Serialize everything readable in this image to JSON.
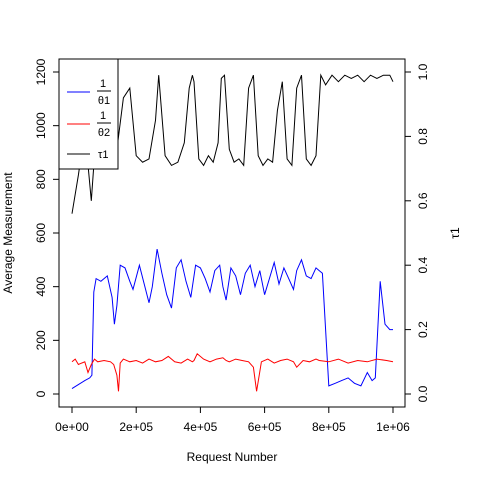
{
  "chart_data": {
    "type": "line",
    "xlabel": "Request Number",
    "ylabel_left": "Average Measurement",
    "ylabel_right": "τ1",
    "xlim": [
      0,
      1000000
    ],
    "ylim_left": [
      0,
      1200
    ],
    "ylim_right": [
      0,
      1
    ],
    "x_ticks": [
      0,
      200000,
      400000,
      600000,
      800000,
      1000000
    ],
    "x_tick_labels": [
      "0e+00",
      "2e+05",
      "4e+05",
      "6e+05",
      "8e+05",
      "1e+06"
    ],
    "y_ticks_left": [
      0,
      200,
      400,
      600,
      800,
      1000,
      1200
    ],
    "y_tick_labels_left": [
      "0",
      "200",
      "400",
      "600",
      "800",
      "1000",
      "1200"
    ],
    "y_ticks_right": [
      0,
      0.2,
      0.4,
      0.6,
      0.8,
      1.0
    ],
    "y_tick_labels_right": [
      "0.0",
      "0.2",
      "0.4",
      "0.6",
      "0.8",
      "1.0"
    ],
    "legend_position": "top-left",
    "grid": false,
    "series": [
      {
        "name": "1/θ1",
        "legend_num": "1",
        "legend_den": "θ1",
        "color": "#0000ff",
        "axis": "left",
        "x": [
          0,
          20000,
          40000,
          55000,
          62000,
          68000,
          75000,
          90000,
          110000,
          125000,
          132000,
          140000,
          150000,
          165000,
          180000,
          190000,
          210000,
          225000,
          240000,
          250000,
          265000,
          280000,
          295000,
          310000,
          325000,
          340000,
          355000,
          370000,
          385000,
          400000,
          415000,
          430000,
          445000,
          460000,
          470000,
          480000,
          495000,
          510000,
          525000,
          540000,
          555000,
          570000,
          585000,
          600000,
          615000,
          630000,
          645000,
          660000,
          675000,
          690000,
          700000,
          715000,
          730000,
          745000,
          760000,
          770000,
          780000,
          800000,
          820000,
          840000,
          860000,
          880000,
          900000,
          920000,
          935000,
          945000,
          960000,
          975000,
          990000,
          1000000
        ],
        "values": [
          20,
          35,
          50,
          60,
          70,
          380,
          430,
          420,
          440,
          360,
          260,
          330,
          480,
          470,
          420,
          390,
          480,
          410,
          340,
          400,
          540,
          450,
          370,
          320,
          470,
          500,
          420,
          360,
          480,
          470,
          430,
          380,
          460,
          480,
          400,
          350,
          470,
          440,
          370,
          450,
          480,
          400,
          460,
          370,
          430,
          490,
          410,
          470,
          430,
          390,
          460,
          500,
          440,
          430,
          470,
          460,
          450,
          30,
          40,
          50,
          60,
          40,
          30,
          80,
          50,
          60,
          420,
          260,
          240,
          240
        ]
      },
      {
        "name": "1/θ2",
        "legend_num": "1",
        "legend_den": "θ2",
        "color": "#ff0000",
        "axis": "left",
        "x": [
          0,
          10000,
          20000,
          30000,
          40000,
          50000,
          60000,
          70000,
          80000,
          100000,
          120000,
          130000,
          140000,
          145000,
          150000,
          160000,
          180000,
          200000,
          220000,
          240000,
          260000,
          280000,
          300000,
          320000,
          340000,
          360000,
          375000,
          380000,
          390000,
          410000,
          430000,
          450000,
          470000,
          480000,
          490000,
          510000,
          530000,
          550000,
          565000,
          575000,
          590000,
          610000,
          630000,
          650000,
          670000,
          690000,
          700000,
          720000,
          740000,
          760000,
          770000,
          800000,
          830000,
          860000,
          890000,
          920000,
          950000,
          980000,
          1000000
        ],
        "values": [
          120,
          130,
          110,
          115,
          120,
          80,
          110,
          130,
          120,
          125,
          120,
          110,
          70,
          10,
          115,
          130,
          120,
          125,
          115,
          130,
          120,
          125,
          140,
          120,
          115,
          130,
          120,
          125,
          150,
          130,
          120,
          130,
          135,
          125,
          120,
          130,
          125,
          120,
          100,
          10,
          120,
          130,
          115,
          125,
          130,
          120,
          100,
          125,
          120,
          130,
          125,
          120,
          130,
          115,
          125,
          120,
          130,
          125,
          120
        ]
      },
      {
        "name": "τ1",
        "color": "#000000",
        "axis": "right",
        "x": [
          0,
          20000,
          40000,
          60000,
          70000,
          80000,
          100000,
          120000,
          140000,
          160000,
          180000,
          200000,
          220000,
          240000,
          260000,
          270000,
          290000,
          310000,
          330000,
          350000,
          365000,
          375000,
          380000,
          395000,
          410000,
          425000,
          440000,
          455000,
          465000,
          475000,
          490000,
          505000,
          520000,
          535000,
          550000,
          565000,
          580000,
          595000,
          610000,
          625000,
          640000,
          655000,
          670000,
          685000,
          700000,
          715000,
          730000,
          745000,
          760000,
          775000,
          790000,
          810000,
          830000,
          850000,
          870000,
          890000,
          910000,
          930000,
          950000,
          970000,
          990000,
          1000000
        ],
        "values": [
          0.56,
          0.68,
          0.82,
          0.6,
          0.74,
          0.71,
          0.72,
          0.73,
          0.76,
          0.92,
          0.95,
          0.74,
          0.72,
          0.73,
          0.85,
          0.99,
          0.74,
          0.71,
          0.72,
          0.78,
          0.95,
          0.99,
          0.97,
          0.73,
          0.71,
          0.74,
          0.72,
          0.78,
          0.98,
          0.99,
          0.76,
          0.72,
          0.73,
          0.71,
          0.95,
          0.99,
          0.74,
          0.71,
          0.73,
          0.72,
          0.88,
          0.97,
          0.73,
          0.71,
          0.95,
          0.99,
          0.73,
          0.71,
          0.74,
          0.99,
          0.96,
          0.99,
          0.97,
          0.99,
          0.98,
          0.99,
          0.97,
          0.99,
          0.98,
          0.99,
          0.99,
          0.97
        ]
      }
    ]
  }
}
